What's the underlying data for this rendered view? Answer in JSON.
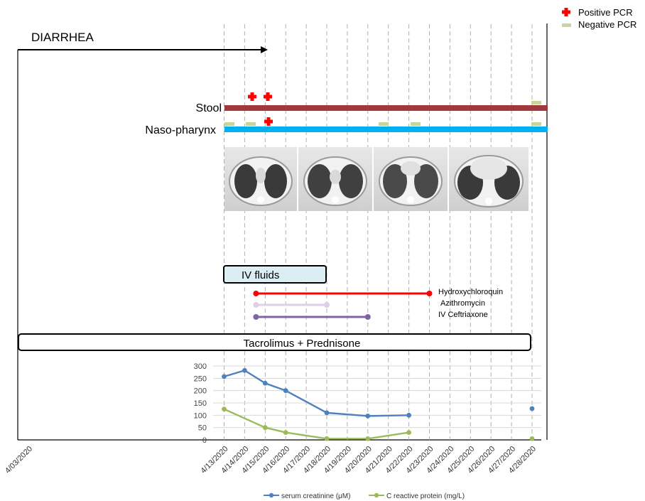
{
  "legend": {
    "positive_pcr": "Positive PCR",
    "negative_pcr": "Negative PCR",
    "positive_color": "#ff0000",
    "negative_color": "#c4d69b"
  },
  "diarrhea": {
    "label": "DIARRHEA"
  },
  "specimens": {
    "stool": {
      "label": "Stool",
      "color": "#a0393d"
    },
    "nasopharynx": {
      "label": "Naso-pharynx",
      "color": "#00b0f0"
    }
  },
  "ct_scans": {
    "count": 4
  },
  "treatments": {
    "iv_fluids": {
      "label": "IV fluids",
      "fill": "#daeef3"
    },
    "drugs": [
      {
        "name": "Hydroxychloroquin",
        "color": "#ff0000",
        "start": "4/14/2020",
        "end": "4/23/2020"
      },
      {
        "name": "Azithromycin",
        "color": "#dcd0e8",
        "start": "4/14/2020",
        "end": "4/18/2020"
      },
      {
        "name": "IV Ceftriaxone",
        "color": "#8064a2",
        "start": "4/14/2020",
        "end": "4/20/2020"
      }
    ],
    "immunosuppression": {
      "label": "Tacrolimus + Prednisone"
    }
  },
  "chart_data": {
    "type": "line",
    "x": [
      "4/13/2020",
      "4/14/2020",
      "4/15/2020",
      "4/16/2020",
      "4/17/2020",
      "4/18/2020",
      "4/19/2020",
      "4/20/2020",
      "4/21/2020",
      "4/22/2020",
      "4/23/2020",
      "4/24/2020",
      "4/25/2020",
      "4/26/2020",
      "4/27/2020",
      "4/28/2020"
    ],
    "first_tick": "4/03/2020",
    "ylim": [
      0,
      300
    ],
    "yticks": [
      0,
      50,
      100,
      150,
      200,
      250,
      300
    ],
    "grid": true,
    "legend_position": "bottom",
    "series": [
      {
        "name": "serum creatinine (μM)",
        "color": "#4f81bd",
        "points": [
          [
            "4/13/2020",
            257
          ],
          [
            "4/14/2020",
            282
          ],
          [
            "4/15/2020",
            230
          ],
          [
            "4/16/2020",
            200
          ],
          [
            "4/18/2020",
            110
          ],
          [
            "4/20/2020",
            97
          ],
          [
            "4/22/2020",
            100
          ],
          [
            "4/28/2020",
            127
          ]
        ]
      },
      {
        "name": "C reactive protein (mg/L)",
        "color": "#9bbb59",
        "points": [
          [
            "4/13/2020",
            125
          ],
          [
            "4/15/2020",
            50
          ],
          [
            "4/16/2020",
            30
          ],
          [
            "4/18/2020",
            5
          ],
          [
            "4/20/2020",
            5
          ],
          [
            "4/22/2020",
            30
          ],
          [
            "4/28/2020",
            5
          ]
        ]
      }
    ]
  }
}
